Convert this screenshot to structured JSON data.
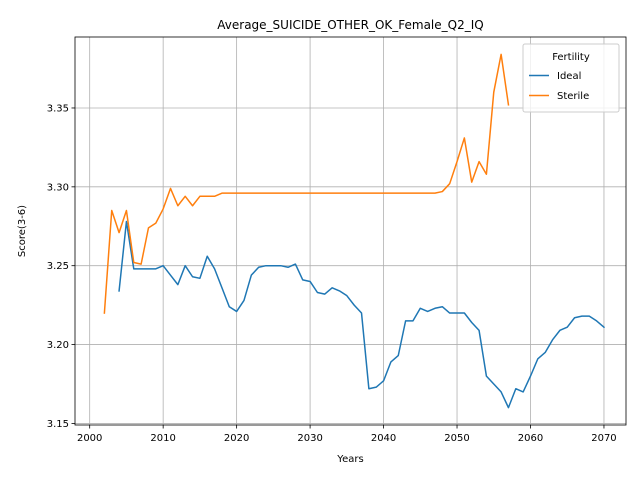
{
  "chart_data": {
    "type": "line",
    "title": "Average_SUICIDE_OTHER_OK_Female_Q2_IQ",
    "xlabel": "Years",
    "ylabel": "Score(3-6)",
    "xlim": [
      1998,
      2073
    ],
    "ylim": [
      3.149,
      3.395
    ],
    "xticks": [
      2000,
      2010,
      2020,
      2030,
      2040,
      2050,
      2060,
      2070
    ],
    "yticks": [
      3.15,
      3.2,
      3.25,
      3.3,
      3.35
    ],
    "xtick_labels": [
      "2000",
      "2010",
      "2020",
      "2030",
      "2040",
      "2050",
      "2060",
      "2070"
    ],
    "ytick_labels": [
      "3.15",
      "3.20",
      "3.25",
      "3.30",
      "3.35"
    ],
    "grid": true,
    "legend": {
      "title": "Fertility",
      "position": "top-right",
      "entries": [
        "Ideal",
        "Sterile"
      ]
    },
    "series": [
      {
        "name": "Ideal",
        "color": "#1f77b4",
        "x": [
          2004,
          2005,
          2006,
          2007,
          2008,
          2009,
          2010,
          2011,
          2012,
          2013,
          2014,
          2015,
          2016,
          2017,
          2018,
          2019,
          2020,
          2021,
          2022,
          2023,
          2024,
          2025,
          2026,
          2027,
          2028,
          2029,
          2030,
          2031,
          2032,
          2033,
          2034,
          2035,
          2036,
          2037,
          2038,
          2039,
          2040,
          2041,
          2042,
          2043,
          2044,
          2045,
          2046,
          2047,
          2048,
          2049,
          2050,
          2051,
          2052,
          2053,
          2054,
          2055,
          2056,
          2057,
          2058,
          2059,
          2060,
          2061,
          2062,
          2063,
          2064,
          2065,
          2066,
          2067,
          2068,
          2069,
          2070
        ],
        "y": [
          3.234,
          3.278,
          3.248,
          3.248,
          3.248,
          3.248,
          3.25,
          3.244,
          3.238,
          3.25,
          3.243,
          3.242,
          3.256,
          3.248,
          3.236,
          3.224,
          3.221,
          3.228,
          3.244,
          3.249,
          3.25,
          3.25,
          3.25,
          3.249,
          3.251,
          3.241,
          3.24,
          3.233,
          3.232,
          3.236,
          3.234,
          3.231,
          3.225,
          3.22,
          3.172,
          3.173,
          3.177,
          3.189,
          3.193,
          3.215,
          3.215,
          3.223,
          3.221,
          3.223,
          3.224,
          3.22,
          3.22,
          3.22,
          3.214,
          3.209,
          3.18,
          3.175,
          3.17,
          3.16,
          3.172,
          3.17,
          3.18,
          3.191,
          3.195,
          3.203,
          3.209,
          3.211,
          3.217,
          3.218,
          3.218,
          3.215,
          3.211
        ]
      },
      {
        "name": "Sterile",
        "color": "#ff7f0e",
        "x": [
          2002,
          2003,
          2004,
          2005,
          2006,
          2007,
          2008,
          2009,
          2010,
          2011,
          2012,
          2013,
          2014,
          2015,
          2016,
          2017,
          2018,
          2019,
          2020,
          2021,
          2022,
          2023,
          2024,
          2025,
          2026,
          2027,
          2028,
          2029,
          2030,
          2031,
          2032,
          2033,
          2034,
          2035,
          2036,
          2037,
          2038,
          2039,
          2040,
          2041,
          2042,
          2043,
          2044,
          2045,
          2046,
          2047,
          2048,
          2049,
          2050,
          2051,
          2052,
          2053,
          2054,
          2055,
          2056,
          2057
        ],
        "y": [
          3.22,
          3.285,
          3.271,
          3.285,
          3.252,
          3.251,
          3.274,
          3.277,
          3.286,
          3.299,
          3.288,
          3.294,
          3.288,
          3.294,
          3.294,
          3.294,
          3.296,
          3.296,
          3.296,
          3.296,
          3.296,
          3.296,
          3.296,
          3.296,
          3.296,
          3.296,
          3.296,
          3.296,
          3.296,
          3.296,
          3.296,
          3.296,
          3.296,
          3.296,
          3.296,
          3.296,
          3.296,
          3.296,
          3.296,
          3.296,
          3.296,
          3.296,
          3.296,
          3.296,
          3.296,
          3.296,
          3.297,
          3.302,
          3.316,
          3.331,
          3.303,
          3.316,
          3.308,
          3.36,
          3.384,
          3.352
        ]
      }
    ]
  }
}
